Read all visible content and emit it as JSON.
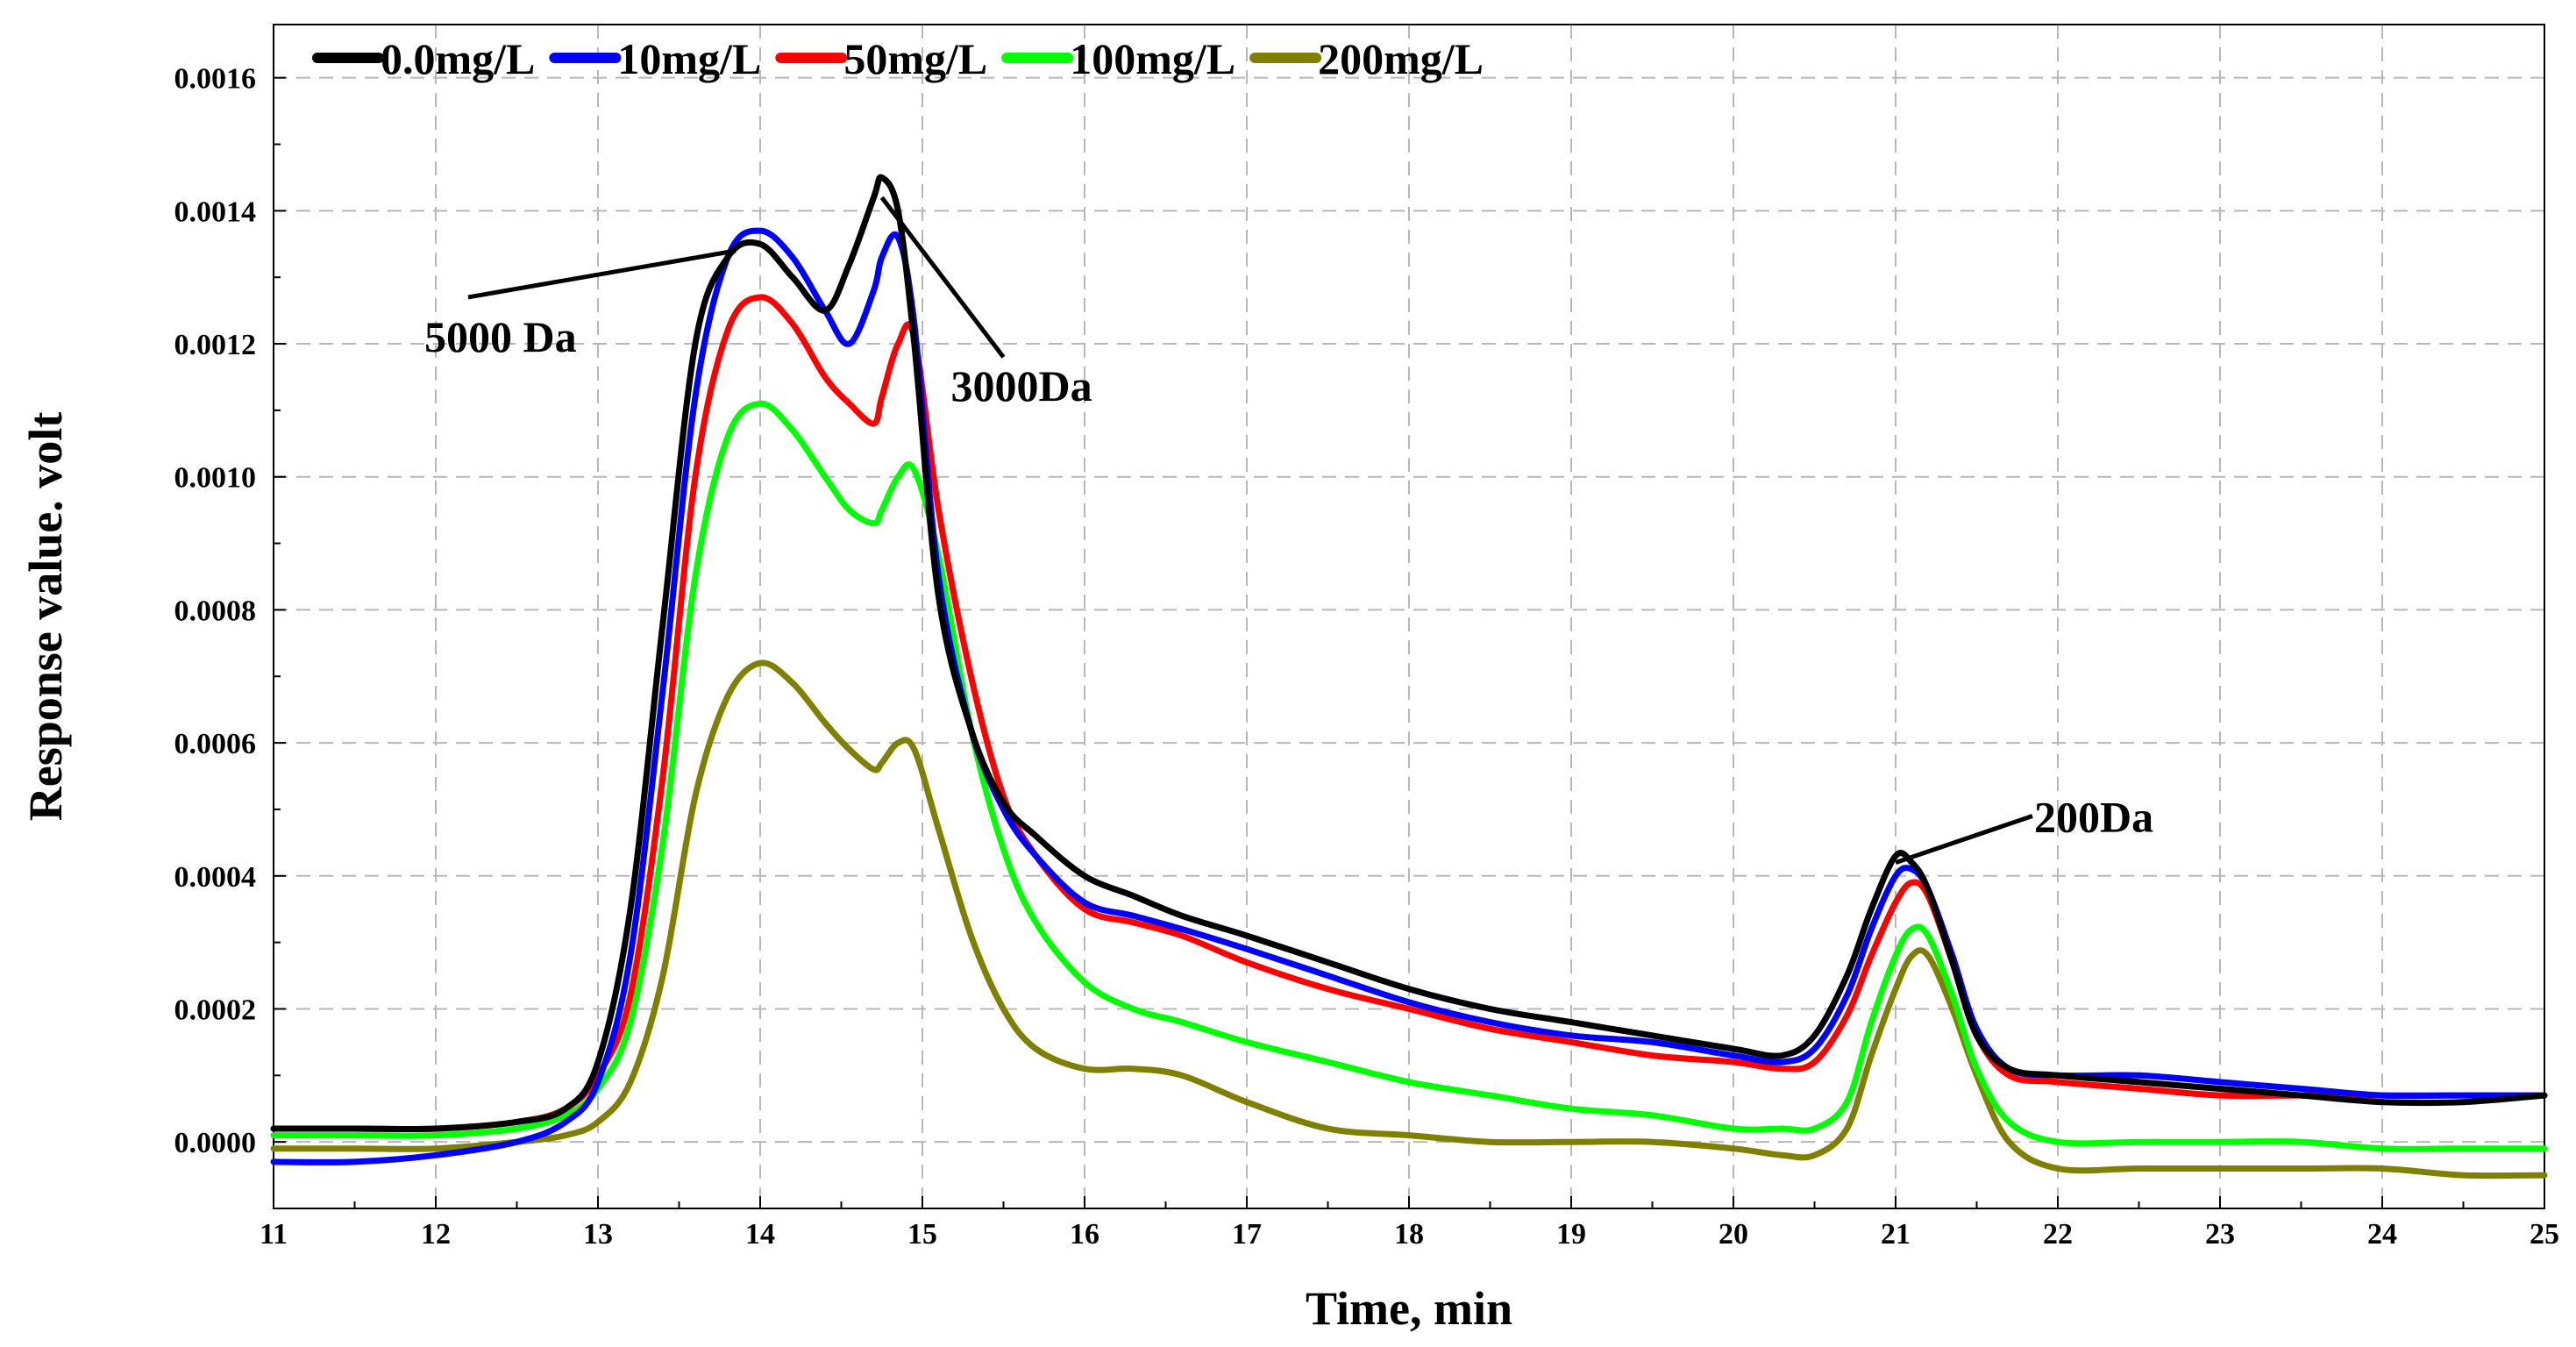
{
  "chart_data": {
    "type": "line",
    "title": "",
    "xlabel": "Time, min",
    "ylabel": "Response value. volt",
    "xlim": [
      11,
      25
    ],
    "ylim": [
      -0.0001,
      0.00168
    ],
    "xticks": [
      11,
      12,
      13,
      14,
      15,
      16,
      17,
      18,
      19,
      20,
      21,
      22,
      23,
      24,
      25
    ],
    "yticks": [
      0.0,
      0.0002,
      0.0004,
      0.0006,
      0.0008,
      0.001,
      0.0012,
      0.0014,
      0.0016
    ],
    "ytick_labels": [
      "0.0000",
      "0.0002",
      "0.0004",
      "0.0006",
      "0.0008",
      "0.0010",
      "0.0012",
      "0.0014",
      "0.0016"
    ],
    "grid": true,
    "legend_position": "top-left",
    "x": [
      11.0,
      11.5,
      12.0,
      12.5,
      12.8,
      13.0,
      13.2,
      13.4,
      13.6,
      13.8,
      14.0,
      14.2,
      14.4,
      14.55,
      14.7,
      14.75,
      14.85,
      14.95,
      15.1,
      15.3,
      15.5,
      15.7,
      16.0,
      16.3,
      16.6,
      17.0,
      17.5,
      18.0,
      18.5,
      19.0,
      19.5,
      20.0,
      20.3,
      20.5,
      20.7,
      20.85,
      21.0,
      21.1,
      21.2,
      21.35,
      21.5,
      21.7,
      22.0,
      22.5,
      23.0,
      23.5,
      24.0,
      24.5,
      25.0
    ],
    "series": [
      {
        "name": "0.0mg/L",
        "color": "#000000",
        "values": [
          2e-05,
          2e-05,
          2e-05,
          3e-05,
          5e-05,
          0.00012,
          0.00035,
          0.00078,
          0.0012,
          0.00133,
          0.00135,
          0.0013,
          0.00125,
          0.00132,
          0.00142,
          0.00145,
          0.0014,
          0.0012,
          0.00082,
          0.00062,
          0.00051,
          0.00046,
          0.0004,
          0.00037,
          0.00034,
          0.00031,
          0.00027,
          0.00023,
          0.0002,
          0.00018,
          0.00016,
          0.00014,
          0.00013,
          0.00016,
          0.00025,
          0.00035,
          0.00043,
          0.00042,
          0.00038,
          0.00027,
          0.00016,
          0.00011,
          0.0001,
          9e-05,
          8e-05,
          7e-05,
          6e-05,
          6e-05,
          7e-05
        ]
      },
      {
        "name": "10mg/L",
        "color": "#0000ff",
        "values": [
          -3e-05,
          -3e-05,
          -2e-05,
          0.0,
          3e-05,
          9e-05,
          0.00028,
          0.00068,
          0.00112,
          0.00133,
          0.00137,
          0.00133,
          0.00125,
          0.0012,
          0.00128,
          0.00133,
          0.00136,
          0.00123,
          0.00085,
          0.00062,
          0.0005,
          0.00043,
          0.00036,
          0.00034,
          0.00032,
          0.00029,
          0.00025,
          0.00021,
          0.00018,
          0.00016,
          0.00015,
          0.00013,
          0.00012,
          0.00014,
          0.00022,
          0.00032,
          0.0004,
          0.00041,
          0.00038,
          0.00028,
          0.00017,
          0.00011,
          0.0001,
          0.0001,
          9e-05,
          8e-05,
          7e-05,
          7e-05,
          7e-05
        ]
      },
      {
        "name": "50mg/L",
        "color": "#ff0000",
        "values": [
          2e-05,
          2e-05,
          2e-05,
          3e-05,
          5e-05,
          0.0001,
          0.00022,
          0.00055,
          0.001,
          0.00122,
          0.00127,
          0.00123,
          0.00115,
          0.00111,
          0.00108,
          0.00112,
          0.0012,
          0.00121,
          0.00095,
          0.0007,
          0.00052,
          0.00043,
          0.00035,
          0.00033,
          0.00031,
          0.00027,
          0.00023,
          0.0002,
          0.00017,
          0.00015,
          0.00013,
          0.00012,
          0.00011,
          0.00012,
          0.00019,
          0.00028,
          0.00036,
          0.00039,
          0.00037,
          0.00027,
          0.00016,
          0.0001,
          9e-05,
          8e-05,
          7e-05,
          7e-05,
          7e-05,
          7e-05,
          7e-05
        ]
      },
      {
        "name": "100mg/L",
        "color": "#00ff00",
        "values": [
          1e-05,
          1e-05,
          1e-05,
          2e-05,
          4e-05,
          8e-05,
          0.00018,
          0.00045,
          0.00085,
          0.00106,
          0.00111,
          0.00107,
          0.001,
          0.00095,
          0.00093,
          0.00095,
          0.001,
          0.00101,
          0.00088,
          0.00062,
          0.00044,
          0.00033,
          0.00024,
          0.0002,
          0.00018,
          0.00015,
          0.00012,
          9e-05,
          7e-05,
          5e-05,
          4e-05,
          2e-05,
          2e-05,
          2e-05,
          6e-05,
          0.00018,
          0.00028,
          0.00032,
          0.00031,
          0.00022,
          0.00011,
          3e-05,
          0.0,
          0.0,
          0.0,
          0.0,
          -1e-05,
          -1e-05,
          -1e-05
        ]
      },
      {
        "name": "200mg/L",
        "color": "#808000",
        "values": [
          -1e-05,
          -1e-05,
          -1e-05,
          0.0,
          1e-05,
          3e-05,
          9e-05,
          0.00025,
          0.00052,
          0.00067,
          0.00072,
          0.00069,
          0.00063,
          0.00059,
          0.00056,
          0.00057,
          0.0006,
          0.00059,
          0.00047,
          0.00031,
          0.0002,
          0.00014,
          0.00011,
          0.00011,
          0.0001,
          6e-05,
          2e-05,
          1e-05,
          0.0,
          0.0,
          0.0,
          -1e-05,
          -2e-05,
          -2e-05,
          2e-05,
          0.00013,
          0.00023,
          0.00028,
          0.00028,
          0.0002,
          0.0001,
          0.0,
          -4e-05,
          -4e-05,
          -4e-05,
          -4e-05,
          -4e-05,
          -5e-05,
          -5e-05
        ]
      }
    ],
    "annotations": [
      {
        "text": "5000 Da",
        "point": [
          13.85,
          0.00134
        ],
        "label_at": [
          12.2,
          0.00127
        ]
      },
      {
        "text": "3000Da",
        "point": [
          14.75,
          0.00142
        ],
        "label_at": [
          15.5,
          0.00118
        ]
      },
      {
        "text": "200Da",
        "point": [
          21.0,
          0.00042
        ],
        "label_at": [
          21.8,
          0.00049
        ]
      }
    ]
  }
}
